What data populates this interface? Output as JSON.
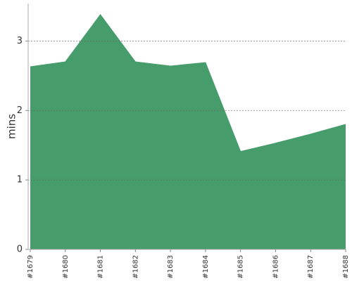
{
  "chart_data": {
    "type": "area",
    "y_label": "mins",
    "categories": [
      "#1679",
      "#1680",
      "#1681",
      "#1682",
      "#1683",
      "#1684",
      "#1685",
      "#1686",
      "#1687",
      "#1688"
    ],
    "values": [
      2.63,
      2.7,
      3.38,
      2.7,
      2.64,
      2.69,
      1.41,
      1.53,
      1.66,
      1.8
    ],
    "color": "#469c6b",
    "ylim": [
      0,
      3.54
    ],
    "yticks": [
      0,
      1,
      2,
      3
    ],
    "grid": true
  }
}
